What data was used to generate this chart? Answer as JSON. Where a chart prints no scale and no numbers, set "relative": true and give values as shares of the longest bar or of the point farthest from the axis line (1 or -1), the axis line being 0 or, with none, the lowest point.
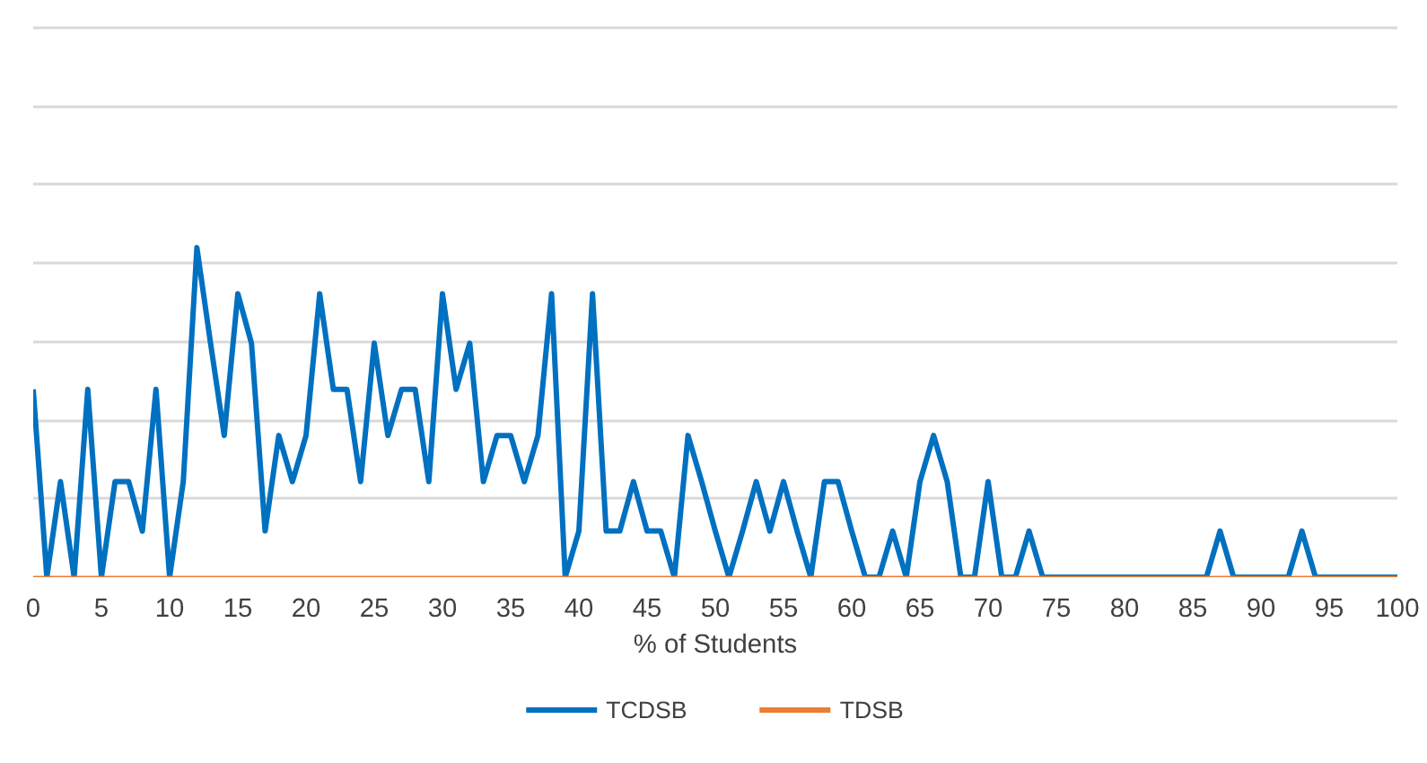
{
  "chart_data": {
    "type": "line",
    "relative": true,
    "xlabel": "% of Students",
    "x": [
      0,
      1,
      2,
      3,
      4,
      5,
      6,
      7,
      8,
      9,
      10,
      11,
      12,
      13,
      14,
      15,
      16,
      17,
      18,
      19,
      20,
      21,
      22,
      23,
      24,
      25,
      26,
      27,
      28,
      29,
      30,
      31,
      32,
      33,
      34,
      35,
      36,
      37,
      38,
      39,
      40,
      41,
      42,
      43,
      44,
      45,
      46,
      47,
      48,
      49,
      50,
      51,
      52,
      53,
      54,
      55,
      56,
      57,
      58,
      59,
      60,
      61,
      62,
      63,
      64,
      65,
      66,
      67,
      68,
      69,
      70,
      71,
      72,
      73,
      74,
      75,
      76,
      77,
      78,
      79,
      80,
      81,
      82,
      83,
      84,
      85,
      86,
      87,
      88,
      89,
      90,
      91,
      92,
      93,
      94,
      95,
      96,
      97,
      98,
      99,
      100
    ],
    "xlim": [
      0,
      100
    ],
    "xticks": [
      0,
      5,
      10,
      15,
      20,
      25,
      30,
      35,
      40,
      45,
      50,
      55,
      60,
      65,
      70,
      75,
      80,
      85,
      90,
      95,
      100
    ],
    "grid": "y",
    "legend": "bottom",
    "marker": "none",
    "line_style": "solid",
    "series": [
      {
        "name": "TCDSB",
        "color": "#0070c0",
        "values": [
          0.57,
          0,
          0.29,
          0,
          0.57,
          0,
          0.29,
          0.29,
          0.14,
          0.57,
          0,
          0.29,
          1,
          0.71,
          0.43,
          0.86,
          0.71,
          0.14,
          0.43,
          0.29,
          0.43,
          0.86,
          0.57,
          0.57,
          0.29,
          0.71,
          0.43,
          0.57,
          0.57,
          0.29,
          0.86,
          0.57,
          0.71,
          0.29,
          0.43,
          0.43,
          0.29,
          0.43,
          0.86,
          0,
          0.14,
          0.86,
          0.14,
          0.14,
          0.29,
          0.14,
          0.14,
          0,
          0.43,
          0.29,
          0.14,
          0,
          0.14,
          0.29,
          0.14,
          0.29,
          0.14,
          0,
          0.29,
          0.29,
          0.14,
          0,
          0,
          0.14,
          0,
          0.29,
          0.43,
          0.29,
          0,
          0,
          0.29,
          0,
          0,
          0.14,
          0,
          0,
          0,
          0,
          0,
          0,
          0,
          0,
          0,
          0,
          0,
          0,
          0,
          0.14,
          0,
          0,
          0,
          0,
          0,
          0.14,
          0,
          0,
          0,
          0,
          0,
          0,
          0
        ]
      },
      {
        "name": "TDSB",
        "color": "#ed7d31",
        "values": [
          0,
          0,
          0,
          0,
          0,
          0,
          0,
          0,
          0,
          0,
          0,
          0,
          0,
          0,
          0,
          0,
          0,
          0,
          0,
          0,
          0,
          0,
          0,
          0,
          0,
          0,
          0,
          0,
          0,
          0,
          0,
          0,
          0,
          0,
          0,
          0,
          0,
          0,
          0,
          0,
          0,
          0,
          0,
          0,
          0,
          0,
          0,
          0,
          0,
          0,
          0,
          0,
          0,
          0,
          0,
          0,
          0,
          0,
          0,
          0,
          0,
          0,
          0,
          0,
          0,
          0,
          0,
          0,
          0,
          0,
          0,
          0,
          0,
          0,
          0,
          0,
          0,
          0,
          0,
          0,
          0,
          0,
          0,
          0,
          0,
          0,
          0,
          0,
          0,
          0,
          0,
          0,
          0,
          0,
          0,
          0,
          0,
          0,
          0,
          0,
          0
        ]
      }
    ]
  }
}
